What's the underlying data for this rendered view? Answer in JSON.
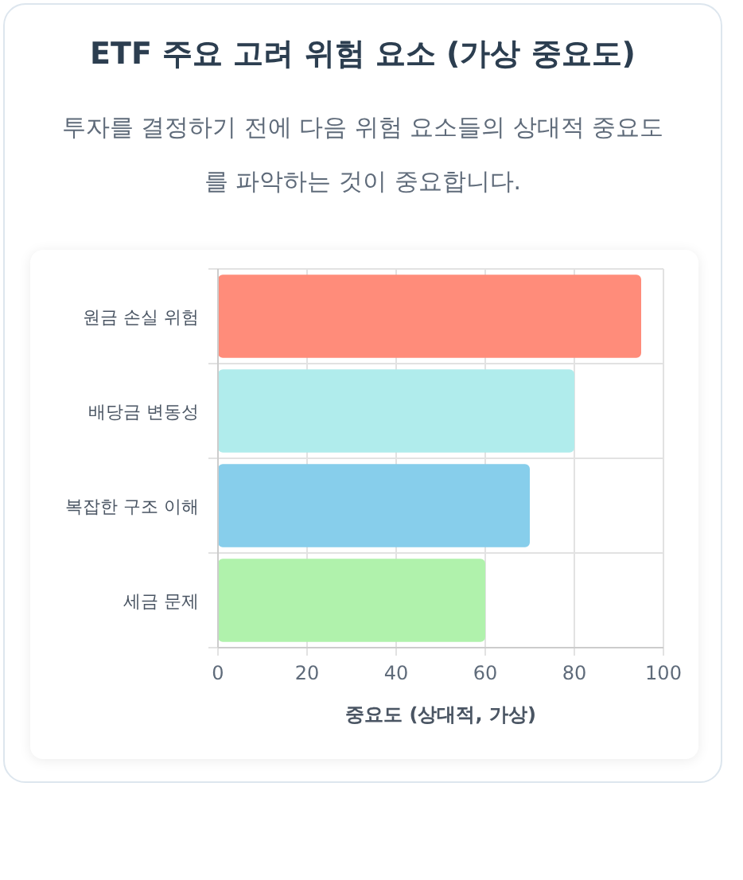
{
  "chart_data": {
    "type": "bar",
    "orientation": "horizontal",
    "title": "ETF 주요 고려 위험 요소 (가상 중요도)",
    "subtitle": "투자를 결정하기 전에 다음 위험 요소들의 상대적 중요도를 파악하는 것이 중요합니다.",
    "xlabel": "중요도 (상대적, 가상)",
    "categories": [
      "원금 손실 위험",
      "배당금 변동성",
      "복잡한 구조 이해",
      "세금 문제"
    ],
    "values": [
      95,
      80,
      70,
      60
    ],
    "colors": [
      "#ff8c7a",
      "#b0ecec",
      "#87ceeb",
      "#b0f2ac"
    ],
    "xlim": [
      0,
      100
    ],
    "xticks": [
      0,
      20,
      40,
      60,
      80,
      100
    ],
    "grid": true
  }
}
